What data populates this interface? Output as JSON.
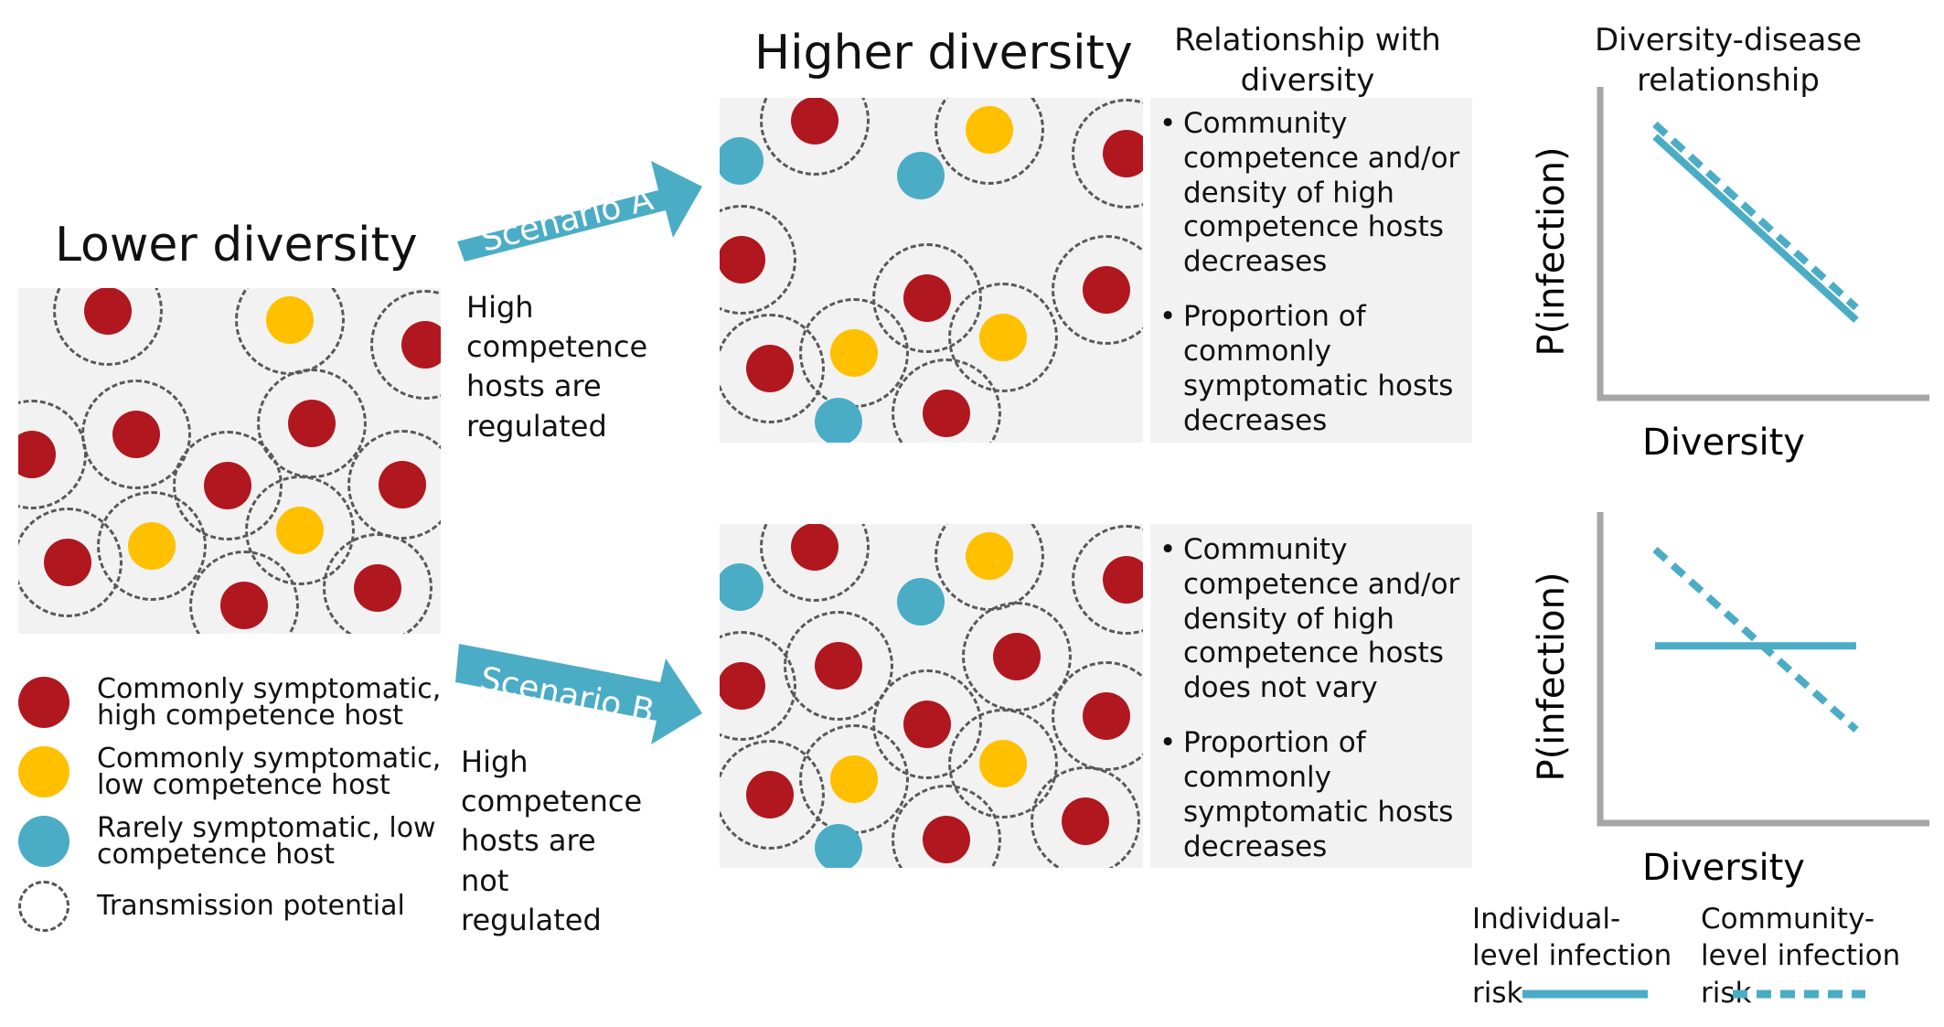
{
  "titles": {
    "lower": "Lower diversity",
    "higher": "Higher diversity",
    "relationship": "Relationship with diversity",
    "dd_relationship": "Diversity-disease relationship"
  },
  "colors": {
    "red_host": "#B0171F",
    "yellow_host": "#FFC000",
    "blue_host": "#4BACC6",
    "arrow": "#4BACC6",
    "panel_bg": "#F2F2F2",
    "axis": "#A6A6A6",
    "dash_ring": "#595959"
  },
  "scenarios": [
    {
      "arrow_label": "Scenario A",
      "caption": "High competence hosts are regulated",
      "bullets": [
        "Community competence and/or density of high competence hosts decreases",
        "Proportion of commonly symptomatic hosts decreases"
      ]
    },
    {
      "arrow_label": "Scenario B",
      "caption": "High competence hosts are not regulated",
      "bullets": [
        "Community competence and/or density of high competence hosts does not vary",
        "Proportion of commonly symptomatic hosts decreases"
      ]
    }
  ],
  "legend": [
    {
      "label": "Commonly symptomatic, high competence host",
      "icon": "red-host-icon"
    },
    {
      "label": "Commonly symptomatic, low competence host",
      "icon": "yellow-host-icon"
    },
    {
      "label": "Rarely symptomatic, low competence host",
      "icon": "blue-host-icon"
    },
    {
      "label": "Transmission potential",
      "icon": "dashed-ring-icon"
    }
  ],
  "chart_data": [
    {
      "type": "line",
      "xlabel": "Diversity",
      "ylabel": "P(infection)",
      "series": [
        {
          "name": "Individual-level infection risk",
          "style": "solid",
          "x": [
            0,
            1
          ],
          "values": [
            0.84,
            0.25
          ]
        },
        {
          "name": "Community-level infection risk",
          "style": "dashed",
          "x": [
            0,
            1
          ],
          "values": [
            0.88,
            0.29
          ]
        }
      ]
    },
    {
      "type": "line",
      "xlabel": "Diversity",
      "ylabel": "P(infection)",
      "series": [
        {
          "name": "Individual-level infection risk",
          "style": "solid",
          "x": [
            0,
            1
          ],
          "values": [
            0.57,
            0.57
          ]
        },
        {
          "name": "Community-level infection risk",
          "style": "dashed",
          "x": [
            0,
            1
          ],
          "values": [
            0.88,
            0.3
          ]
        }
      ]
    }
  ],
  "line_legend": [
    {
      "label": "Individual-level infection risk",
      "style": "solid"
    },
    {
      "label": "Community-level infection risk",
      "style": "dashed"
    }
  ]
}
